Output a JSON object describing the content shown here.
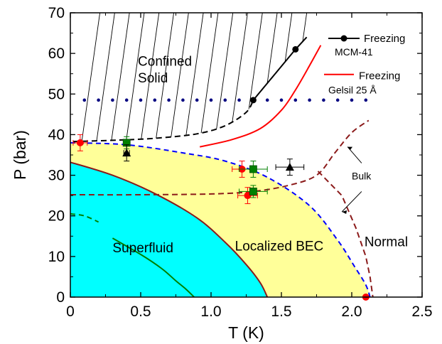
{
  "chart_data": {
    "type": "scatter",
    "xlabel": "T (K)",
    "ylabel": "P (bar)",
    "xlim": [
      0,
      2.5
    ],
    "ylim": [
      0,
      70
    ],
    "x_ticks": [
      "0",
      "0.5",
      "1.0",
      "1.5",
      "2.0",
      "2.5"
    ],
    "y_ticks": [
      "0",
      "10",
      "20",
      "30",
      "40",
      "50",
      "60",
      "70"
    ],
    "grid": false,
    "colors": {
      "superfluid_fill": "#00ffff",
      "bec_fill": "#ffff99",
      "freezing_mcm41": "#000000",
      "freezing_gelsil": "#ff0000",
      "bulk": "#8b1a1a",
      "bec_boundary": "#0000ff",
      "inner_green": "#008000",
      "dotted": "#000080"
    },
    "regions": [
      {
        "label": "Confined\nSolid",
        "label_lines": [
          "Confined",
          "Solid"
        ]
      },
      {
        "label": "Superfluid"
      },
      {
        "label": "Localized BEC"
      },
      {
        "label": "Normal"
      }
    ],
    "annotations": {
      "bulk": "Bulk"
    },
    "legend": [
      {
        "label": "Freezing",
        "sublabel": "MCM-41"
      },
      {
        "label": "Freezing",
        "sublabel": "Gelsil 25 Å"
      }
    ],
    "series": [
      {
        "name": "Freezing MCM-41",
        "kind": "line+markers",
        "x": [
          1.3,
          1.6,
          1.68
        ],
        "y": [
          48.5,
          61,
          64
        ],
        "marker_x": [
          1.3,
          1.6
        ],
        "marker_y": [
          48.5,
          61
        ]
      },
      {
        "name": "Freezing Gelsil 25 Å",
        "kind": "line",
        "x": [
          0.92,
          1.15,
          1.35,
          1.5,
          1.6,
          1.7,
          1.78
        ],
        "y": [
          37,
          38.8,
          41.5,
          46,
          51,
          57,
          62
        ]
      },
      {
        "kind": "dashed",
        "x": [
          0.02,
          0.3,
          0.6,
          0.9,
          1.1,
          1.25,
          1.3
        ],
        "y": [
          38.3,
          38.6,
          39.1,
          40.2,
          42.2,
          45.5,
          48.5
        ]
      },
      {
        "kind": "dotted",
        "x": [
          0.1,
          0.2,
          0.3,
          0.4,
          0.5,
          0.6,
          0.7,
          0.8,
          0.9,
          1.0,
          1.1,
          1.2,
          1.3,
          1.4,
          1.5,
          1.6,
          1.7,
          1.8,
          1.9,
          2.0,
          2.1
        ],
        "y": [
          48.5,
          48.5,
          48.5,
          48.5,
          48.5,
          48.5,
          48.5,
          48.5,
          48.5,
          48.5,
          48.5,
          48.5,
          48.5,
          48.5,
          48.5,
          48.5,
          48.5,
          48.5,
          48.5,
          48.5,
          48.5
        ]
      },
      {
        "kind": "bulk-dashed",
        "x": [
          0,
          0.5,
          1.0,
          1.3,
          1.55,
          1.75,
          1.88,
          2.0,
          2.12
        ],
        "y": [
          25.2,
          25.2,
          25.4,
          26,
          27.5,
          30,
          35.5,
          40.5,
          43.5
        ]
      },
      {
        "kind": "bulk-dashed",
        "x": [
          1.76,
          1.93,
          2.03,
          2.1,
          2.13,
          2.15
        ],
        "y": [
          31,
          25,
          17,
          10,
          5,
          0
        ]
      },
      {
        "kind": "bec-boundary",
        "x": [
          0,
          0.4,
          0.8,
          1.1,
          1.4,
          1.7,
          1.9,
          2.02,
          2.1,
          2.13
        ],
        "y": [
          38,
          37.5,
          35.5,
          33.5,
          29.5,
          22.5,
          14,
          7.5,
          3,
          0
        ]
      },
      {
        "kind": "superfluid-boundary",
        "x": [
          0,
          0.3,
          0.6,
          0.9,
          1.1,
          1.25,
          1.35,
          1.4
        ],
        "y": [
          33.2,
          30,
          25.5,
          19.5,
          13.5,
          8,
          3.5,
          0
        ]
      },
      {
        "kind": "inner-green-dashed",
        "x": [
          0.0,
          0.1,
          0.2
        ],
        "y": [
          20.5,
          20,
          18.5
        ]
      },
      {
        "kind": "inner-green-solid",
        "x": [
          0.3,
          0.5,
          0.65,
          0.75,
          0.82,
          0.88
        ],
        "y": [
          14.5,
          10.5,
          7,
          4,
          2,
          0
        ]
      }
    ],
    "points": [
      {
        "x": 0.07,
        "y": 38,
        "marker": "circle",
        "color": "#ff0000",
        "xerr": 0.05,
        "yerr": 2
      },
      {
        "x": 2.1,
        "y": 0,
        "marker": "circle",
        "color": "#ff0000",
        "xerr": 0,
        "yerr": 0
      },
      {
        "x": 1.22,
        "y": 31.5,
        "marker": "circle",
        "color": "#ff0000",
        "xerr": 0.07,
        "yerr": 2
      },
      {
        "x": 1.26,
        "y": 25,
        "marker": "circle",
        "color": "#ff0000",
        "xerr": 0.07,
        "yerr": 2
      },
      {
        "x": 0.4,
        "y": 38,
        "marker": "square",
        "color": "#008000",
        "xerr": 0.02,
        "yerr": 1.5
      },
      {
        "x": 1.3,
        "y": 31.5,
        "marker": "square",
        "color": "#008000",
        "xerr": 0.1,
        "yerr": 2
      },
      {
        "x": 1.3,
        "y": 26,
        "marker": "square",
        "color": "#008000",
        "xerr": 0.1,
        "yerr": 1.5
      },
      {
        "x": 0.4,
        "y": 35.5,
        "marker": "triangle",
        "color": "#000000",
        "xerr": 0.02,
        "yerr": 2
      },
      {
        "x": 1.56,
        "y": 32,
        "marker": "triangle",
        "color": "#000000",
        "xerr": 0.1,
        "yerr": 2
      }
    ]
  }
}
